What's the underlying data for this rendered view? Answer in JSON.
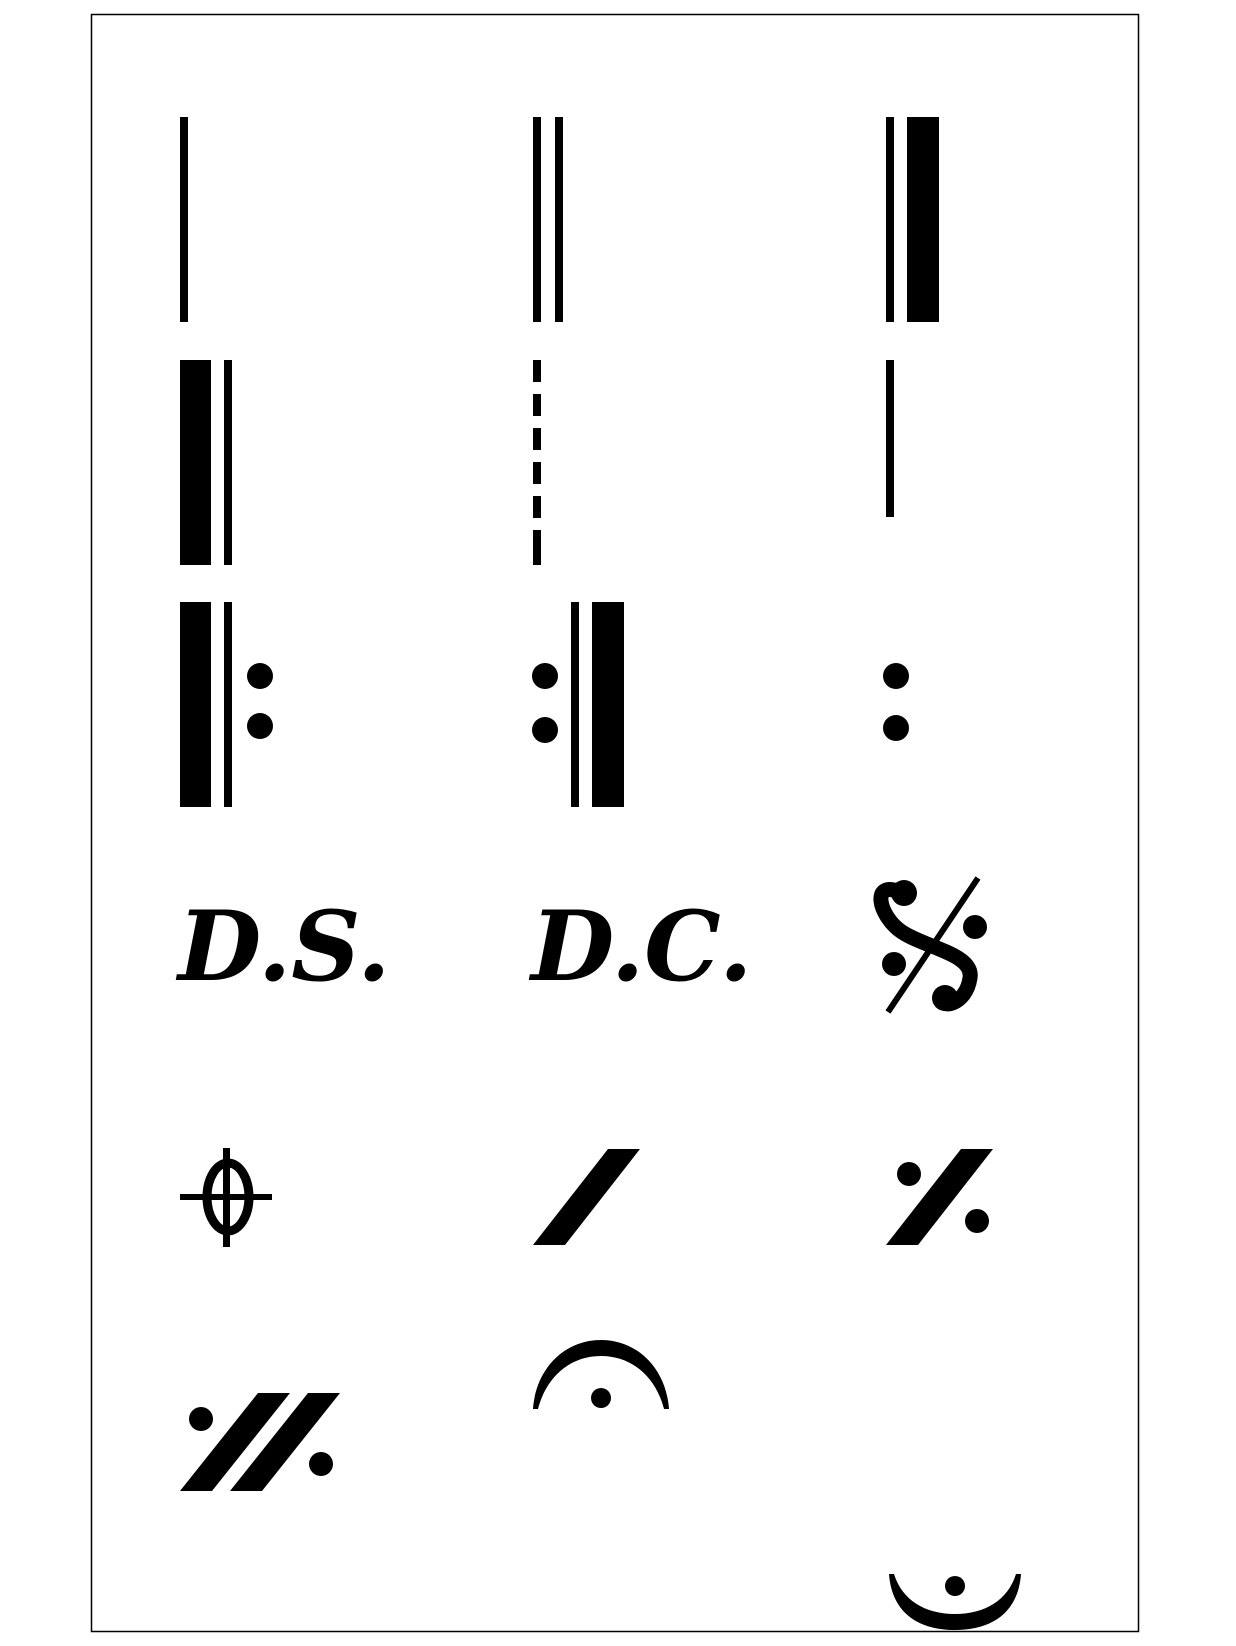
{
  "sheet": {
    "ink_color": "#000000",
    "paper_color": "#ffffff",
    "symbols": [
      {
        "name": "single-barline-icon",
        "kind": "single-barline"
      },
      {
        "name": "double-barline-icon",
        "kind": "double-barline"
      },
      {
        "name": "final-barline-icon",
        "kind": "final-barline"
      },
      {
        "name": "reverse-final-barline-icon",
        "kind": "reverse-final-barline"
      },
      {
        "name": "dashed-barline-icon",
        "kind": "dashed-barline"
      },
      {
        "name": "short-barline-icon",
        "kind": "short-barline"
      },
      {
        "name": "repeat-start-icon",
        "kind": "repeat-start"
      },
      {
        "name": "repeat-end-icon",
        "kind": "repeat-end"
      },
      {
        "name": "repeat-dots-icon",
        "kind": "repeat-dots"
      },
      {
        "name": "dal-segno-text",
        "kind": "text",
        "text": "D.S."
      },
      {
        "name": "da-capo-text",
        "kind": "text",
        "text": "D.C."
      },
      {
        "name": "segno-icon",
        "kind": "segno"
      },
      {
        "name": "coda-icon",
        "kind": "coda"
      },
      {
        "name": "slash-icon",
        "kind": "slash"
      },
      {
        "name": "measure-repeat-icon",
        "kind": "measure-repeat"
      },
      {
        "name": "two-measure-repeat-icon",
        "kind": "two-measure-repeat"
      },
      {
        "name": "fermata-above-icon",
        "kind": "fermata-above"
      },
      {
        "name": "fermata-below-icon",
        "kind": "fermata-below"
      }
    ]
  }
}
